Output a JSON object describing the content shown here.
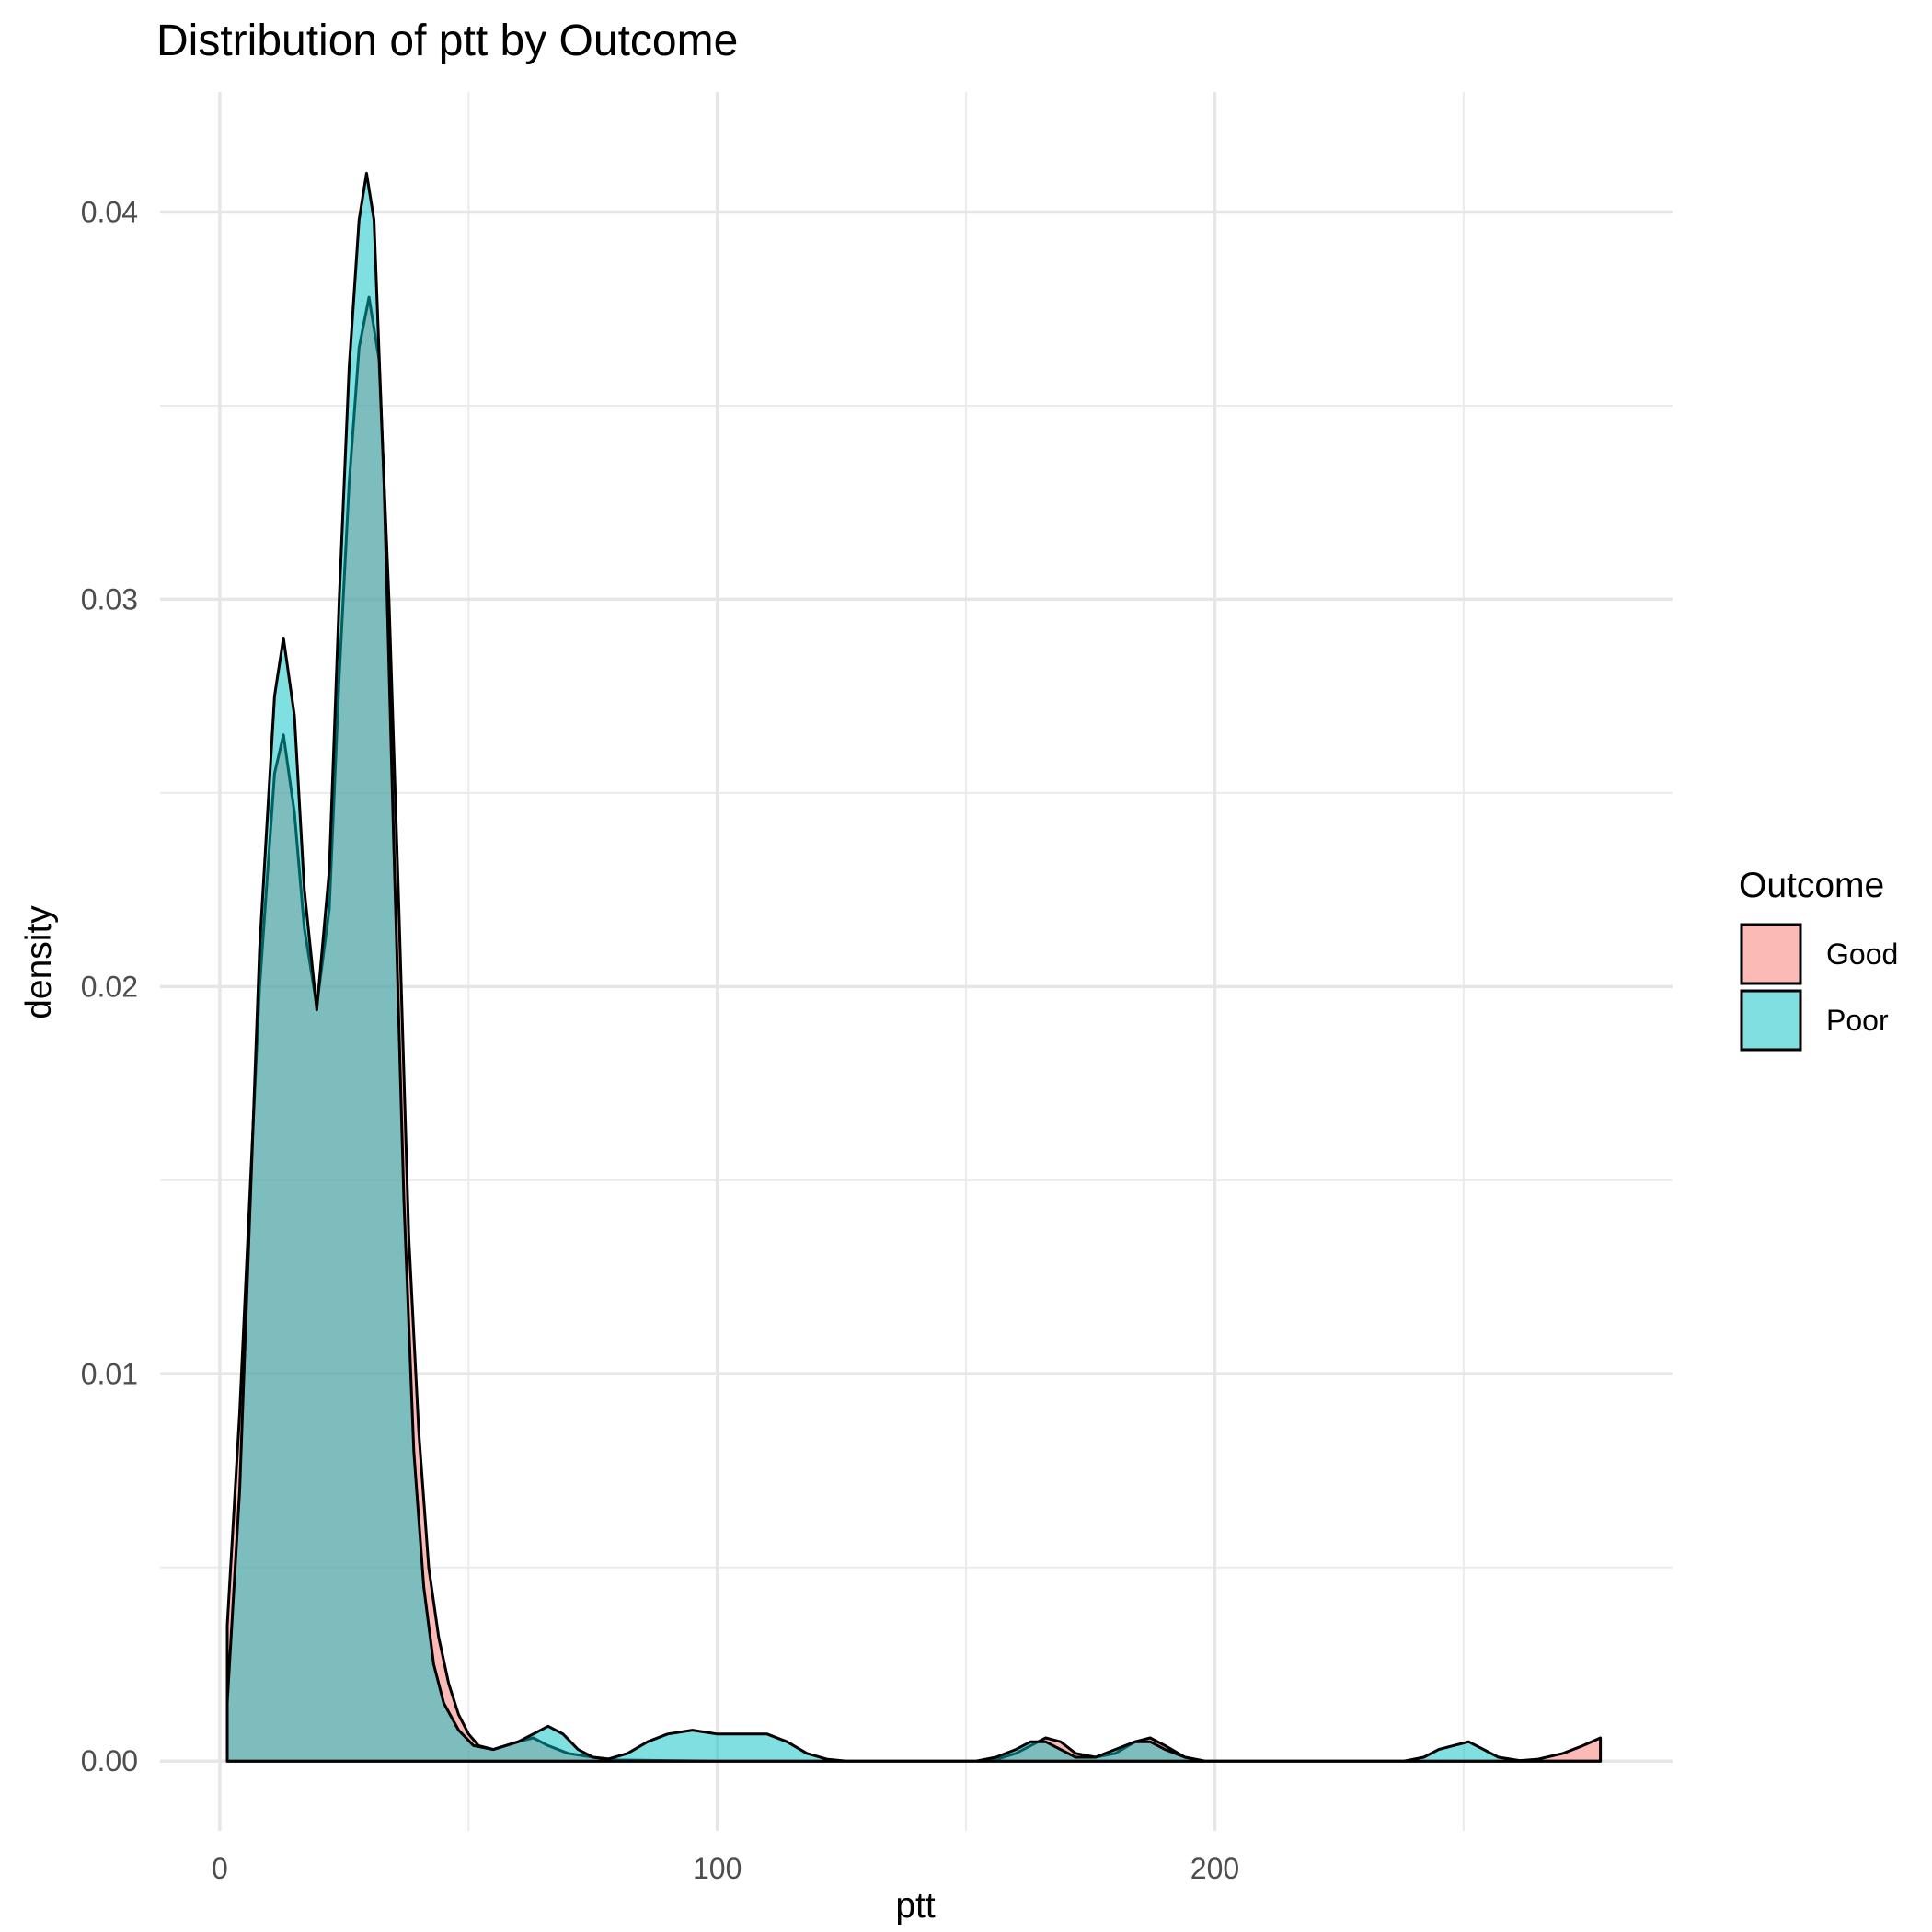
{
  "chart_data": {
    "type": "area",
    "title": "Distribution of ptt by Outcome",
    "xlabel": "ptt",
    "ylabel": "density",
    "xlim": [
      -12,
      292
    ],
    "ylim": [
      -0.0018,
      0.0431
    ],
    "x_ticks": [
      0,
      100,
      200
    ],
    "x_minor_ticks": [
      50,
      150,
      250
    ],
    "y_ticks": [
      0.0,
      0.01,
      0.02,
      0.03,
      0.04
    ],
    "y_tick_labels": [
      "0.00",
      "0.01",
      "0.02",
      "0.03",
      "0.04"
    ],
    "y_minor_ticks": [
      0.005,
      0.015,
      0.025,
      0.035
    ],
    "grid": true,
    "legend": {
      "title": "Outcome",
      "position": "right"
    },
    "series": [
      {
        "name": "Good",
        "color": "#F8766D",
        "points": [
          [
            1.5,
            0.0035
          ],
          [
            4,
            0.009
          ],
          [
            8,
            0.02
          ],
          [
            11,
            0.0255
          ],
          [
            12.8,
            0.0265
          ],
          [
            15,
            0.0245
          ],
          [
            17,
            0.0215
          ],
          [
            19.5,
            0.0195
          ],
          [
            22,
            0.022
          ],
          [
            24,
            0.028
          ],
          [
            26,
            0.033
          ],
          [
            28,
            0.0365
          ],
          [
            30,
            0.0378
          ],
          [
            32,
            0.0362
          ],
          [
            34,
            0.03
          ],
          [
            36,
            0.022
          ],
          [
            38,
            0.0135
          ],
          [
            40,
            0.0085
          ],
          [
            42,
            0.005
          ],
          [
            44,
            0.0032
          ],
          [
            46,
            0.002
          ],
          [
            48,
            0.0012
          ],
          [
            50,
            0.0007
          ],
          [
            52,
            0.0004
          ],
          [
            55,
            0.0003
          ],
          [
            60,
            0.0005
          ],
          [
            63,
            0.0006
          ],
          [
            66,
            0.0004
          ],
          [
            70,
            0.0002
          ],
          [
            75,
            0.0001
          ],
          [
            80,
            3e-05
          ],
          [
            100,
            0.0
          ],
          [
            155,
            0.0
          ],
          [
            160,
            0.0002
          ],
          [
            163,
            0.0004
          ],
          [
            166,
            0.0006
          ],
          [
            169,
            0.0005
          ],
          [
            172,
            0.0002
          ],
          [
            176,
            0.0001
          ],
          [
            180,
            0.0002
          ],
          [
            184,
            0.0005
          ],
          [
            187,
            0.0006
          ],
          [
            190,
            0.0004
          ],
          [
            194,
            0.0001
          ],
          [
            198,
            0.0
          ],
          [
            260,
            0.0
          ],
          [
            265,
            5e-05
          ],
          [
            270,
            0.0002
          ],
          [
            274,
            0.0004
          ],
          [
            277.5,
            0.0006
          ]
        ]
      },
      {
        "name": "Poor",
        "color": "#00BFC4",
        "points": [
          [
            1.5,
            0.0015
          ],
          [
            4,
            0.007
          ],
          [
            8,
            0.021
          ],
          [
            11,
            0.0275
          ],
          [
            12.8,
            0.029
          ],
          [
            15,
            0.027
          ],
          [
            17,
            0.0225
          ],
          [
            19.5,
            0.0194
          ],
          [
            22,
            0.023
          ],
          [
            24,
            0.03
          ],
          [
            26,
            0.036
          ],
          [
            28,
            0.0398
          ],
          [
            29.5,
            0.041
          ],
          [
            31,
            0.0398
          ],
          [
            33,
            0.033
          ],
          [
            35,
            0.0235
          ],
          [
            37,
            0.0145
          ],
          [
            39,
            0.008
          ],
          [
            41,
            0.0045
          ],
          [
            43,
            0.0025
          ],
          [
            45,
            0.0015
          ],
          [
            48,
            0.0008
          ],
          [
            51,
            0.0004
          ],
          [
            55,
            0.0003
          ],
          [
            60,
            0.0005
          ],
          [
            63,
            0.0007
          ],
          [
            66,
            0.0009
          ],
          [
            69,
            0.0007
          ],
          [
            72,
            0.0003
          ],
          [
            75,
            0.0001
          ],
          [
            78,
            5e-05
          ],
          [
            82,
            0.0002
          ],
          [
            86,
            0.0005
          ],
          [
            90,
            0.0007
          ],
          [
            95,
            0.0008
          ],
          [
            100,
            0.0007
          ],
          [
            105,
            0.0007
          ],
          [
            110,
            0.0007
          ],
          [
            114,
            0.0005
          ],
          [
            118,
            0.0002
          ],
          [
            122,
            5e-05
          ],
          [
            126,
            0.0
          ],
          [
            152,
            0.0
          ],
          [
            156,
            0.0001
          ],
          [
            160,
            0.0003
          ],
          [
            163,
            0.0005
          ],
          [
            166,
            0.0005
          ],
          [
            169,
            0.0003
          ],
          [
            172,
            0.0001
          ],
          [
            176,
            0.0001
          ],
          [
            180,
            0.0003
          ],
          [
            184,
            0.0005
          ],
          [
            187,
            0.0005
          ],
          [
            190,
            0.0003
          ],
          [
            194,
            0.0001
          ],
          [
            198,
            0.0
          ],
          [
            238,
            0.0
          ],
          [
            242,
            0.0001
          ],
          [
            245,
            0.0003
          ],
          [
            251,
            0.0005
          ],
          [
            254,
            0.0003
          ],
          [
            257,
            0.0001
          ],
          [
            262,
            0.0
          ],
          [
            277.5,
            0.0
          ]
        ]
      }
    ]
  }
}
